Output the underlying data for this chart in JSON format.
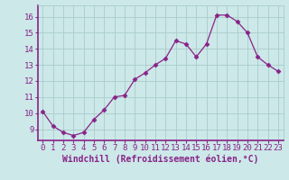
{
  "x": [
    0,
    1,
    2,
    3,
    4,
    5,
    6,
    7,
    8,
    9,
    10,
    11,
    12,
    13,
    14,
    15,
    16,
    17,
    18,
    19,
    20,
    21,
    22,
    23
  ],
  "y": [
    10.1,
    9.2,
    8.8,
    8.6,
    8.8,
    9.6,
    10.2,
    11.0,
    11.1,
    12.1,
    12.5,
    13.0,
    13.4,
    14.5,
    14.3,
    13.5,
    14.3,
    16.1,
    16.1,
    15.7,
    15.0,
    13.5,
    13.0,
    12.6
  ],
  "line_color": "#882288",
  "marker": "D",
  "marker_size": 2.5,
  "bg_color": "#cce8e8",
  "grid_color": "#aacccc",
  "spine_color": "#882288",
  "xlabel": "Windchill (Refroidissement éolien,°C)",
  "xlabel_color": "#882288",
  "xlabel_fontsize": 7,
  "tick_color": "#882288",
  "tick_fontsize": 6.5,
  "xlim": [
    -0.5,
    23.5
  ],
  "ylim": [
    8.3,
    16.7
  ],
  "yticks": [
    9,
    10,
    11,
    12,
    13,
    14,
    15,
    16
  ],
  "xticks": [
    0,
    1,
    2,
    3,
    4,
    5,
    6,
    7,
    8,
    9,
    10,
    11,
    12,
    13,
    14,
    15,
    16,
    17,
    18,
    19,
    20,
    21,
    22,
    23
  ]
}
